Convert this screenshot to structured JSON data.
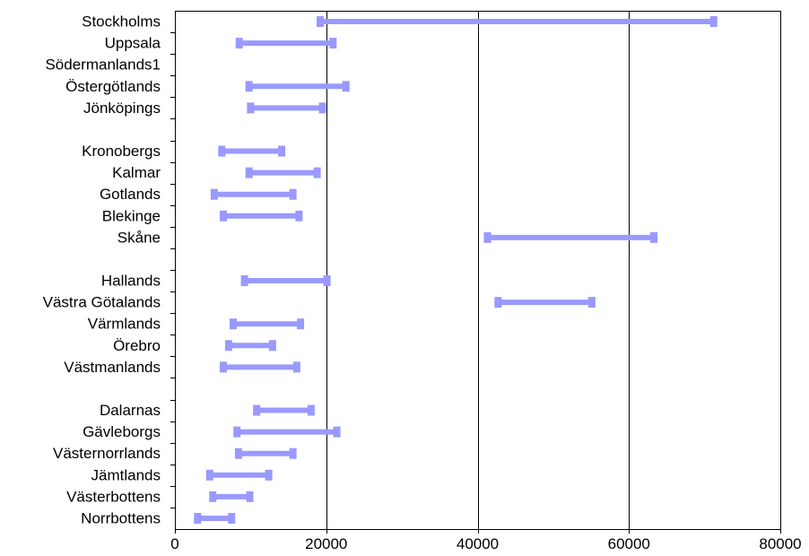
{
  "chart_data": {
    "type": "range-bar",
    "title": "",
    "xlabel": "",
    "ylabel": "",
    "xlim": [
      0,
      80000
    ],
    "xticks": [
      0,
      20000,
      40000,
      60000,
      80000
    ],
    "xtick_labels": [
      "0",
      "20000",
      "40000",
      "60000",
      "80000"
    ],
    "grid": "vertical major gridlines at 20000, 40000, 60000",
    "legend": "none",
    "color": "#9999ff",
    "categories": [
      "Stockholms",
      "Uppsala",
      "Södermanlands1",
      "Östergötlands",
      "Jönköpings",
      "",
      "Kronobergs",
      "Kalmar",
      "Gotlands",
      "Blekinge",
      "Skåne",
      "",
      "Hallands",
      "Västra Götalands",
      "Värmlands",
      "Örebro",
      "Västmanlands",
      "",
      "Dalarnas",
      "Gävleborgs",
      "Västernorrlands",
      "Jämtlands",
      "Västerbottens",
      "Norrbottens"
    ],
    "ranges": [
      [
        19200,
        71200
      ],
      [
        8500,
        20900
      ],
      null,
      [
        9800,
        22600
      ],
      [
        10000,
        19500
      ],
      null,
      [
        6200,
        14100
      ],
      [
        9800,
        18800
      ],
      [
        5200,
        15600
      ],
      [
        6400,
        16400
      ],
      [
        41300,
        63300
      ],
      null,
      [
        9200,
        20100
      ],
      [
        42700,
        55100
      ],
      [
        7700,
        16600
      ],
      [
        7100,
        12900
      ],
      [
        6400,
        16100
      ],
      null,
      [
        10800,
        18000
      ],
      [
        8200,
        21400
      ],
      [
        8400,
        15600
      ],
      [
        4600,
        12400
      ],
      [
        5000,
        9900
      ],
      [
        3000,
        7500
      ]
    ]
  }
}
